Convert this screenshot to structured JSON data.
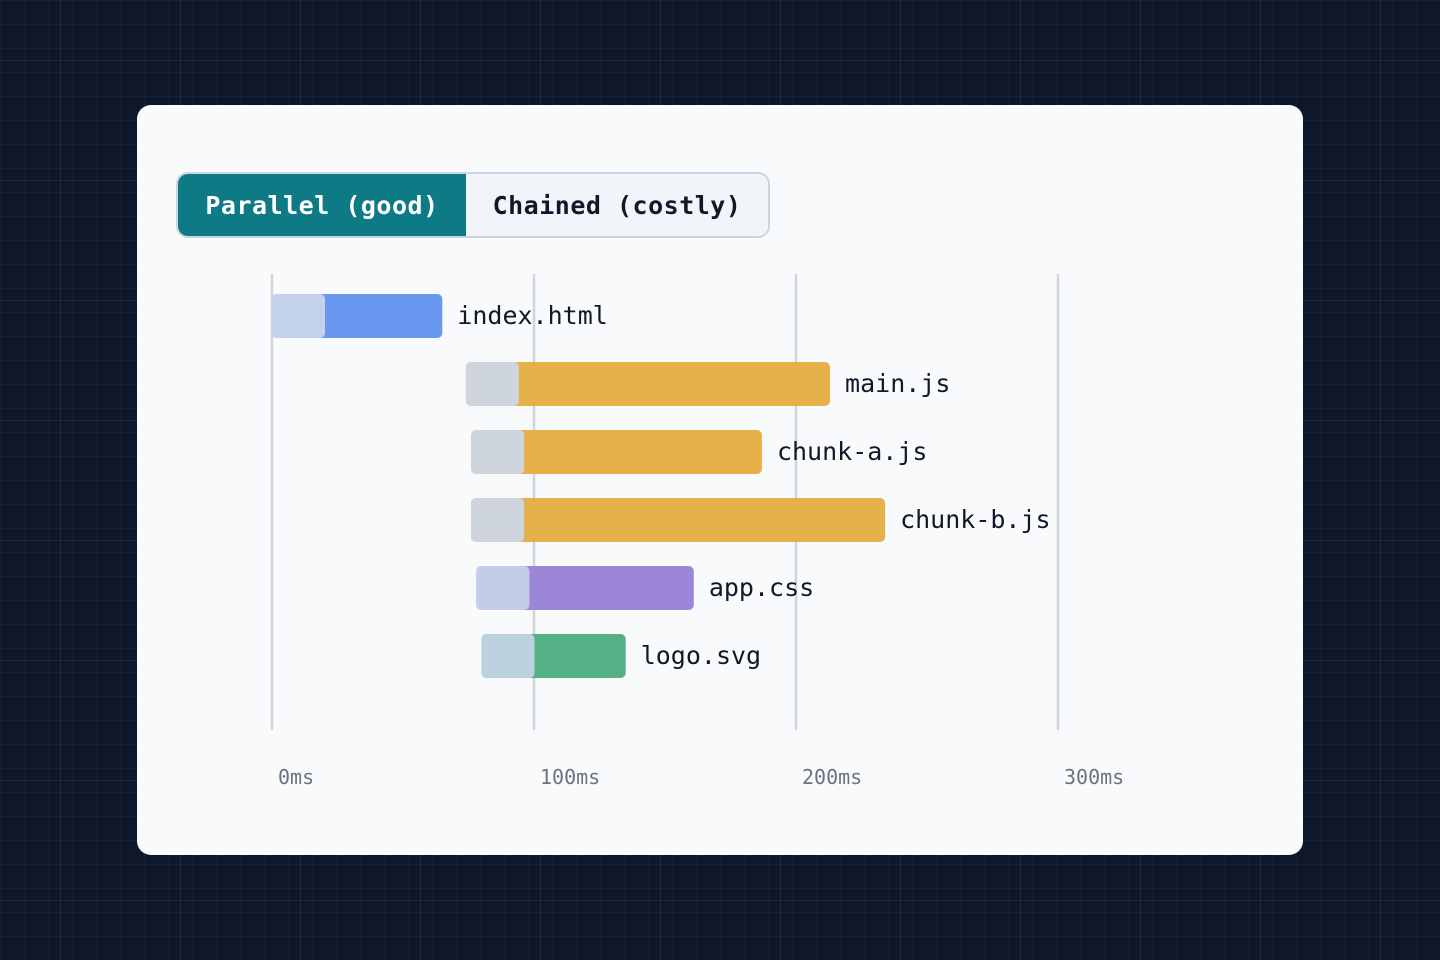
{
  "toggle": {
    "active_label": "Parallel (good)",
    "inactive_label": "Chained (costly)"
  },
  "colors": {
    "page_bg": "#0f172a",
    "card_bg": "#f8fafc",
    "accent": "#0e7a85",
    "gridline": "#d1d5db",
    "html": "#6a98f0",
    "js": "#e6b04a",
    "css": "#9c86d8",
    "svg": "#55b086"
  },
  "chart_data": {
    "type": "bar",
    "orientation": "horizontal",
    "subtype": "waterfall",
    "xlabel": "",
    "ylabel": "",
    "xlim": [
      0,
      300
    ],
    "x_ticks": [
      0,
      100,
      200,
      300
    ],
    "tick_labels": [
      "0ms",
      "100ms",
      "200ms",
      "300ms"
    ],
    "grid": true,
    "segments": [
      "wait",
      "download"
    ],
    "rows": [
      {
        "label": "index.html",
        "start": 0,
        "wait": 20,
        "end": 65,
        "kind": "html",
        "wait_color": "#c3d1ec",
        "bar_color": "#6a98f0"
      },
      {
        "label": "main.js",
        "start": 74,
        "wait": 20,
        "end": 213,
        "kind": "js",
        "wait_color": "#cfd5dc",
        "bar_color": "#e6b04a"
      },
      {
        "label": "chunk-a.js",
        "start": 76,
        "wait": 20,
        "end": 187,
        "kind": "js",
        "wait_color": "#cfd5dc",
        "bar_color": "#e6b04a"
      },
      {
        "label": "chunk-b.js",
        "start": 76,
        "wait": 20,
        "end": 234,
        "kind": "js",
        "wait_color": "#cfd5dc",
        "bar_color": "#e6b04a"
      },
      {
        "label": "app.css",
        "start": 78,
        "wait": 20,
        "end": 161,
        "kind": "css",
        "wait_color": "#c3cde8",
        "bar_color": "#9c86d8"
      },
      {
        "label": "logo.svg",
        "start": 80,
        "wait": 19,
        "end": 135,
        "kind": "svg",
        "wait_color": "#bcd2de",
        "bar_color": "#55b086"
      }
    ]
  }
}
